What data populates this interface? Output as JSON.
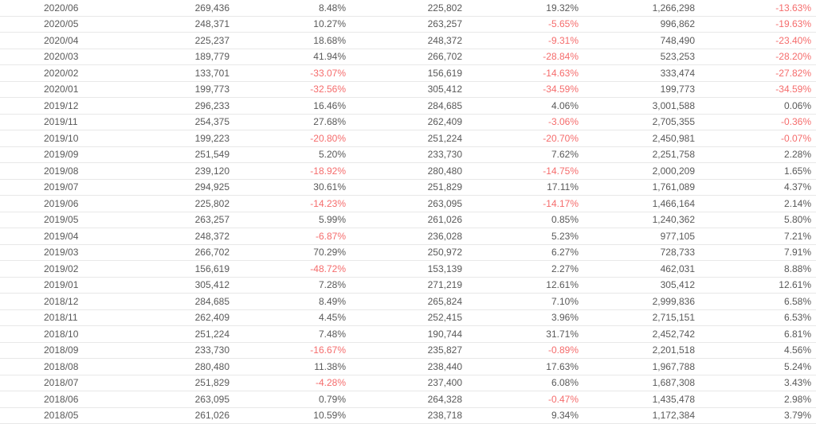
{
  "table": {
    "rows": [
      [
        "2020/06",
        "269,436",
        "8.48%",
        "225,802",
        "19.32%",
        "1,266,298",
        "-13.63%"
      ],
      [
        "2020/05",
        "248,371",
        "10.27%",
        "263,257",
        "-5.65%",
        "996,862",
        "-19.63%"
      ],
      [
        "2020/04",
        "225,237",
        "18.68%",
        "248,372",
        "-9.31%",
        "748,490",
        "-23.40%"
      ],
      [
        "2020/03",
        "189,779",
        "41.94%",
        "266,702",
        "-28.84%",
        "523,253",
        "-28.20%"
      ],
      [
        "2020/02",
        "133,701",
        "-33.07%",
        "156,619",
        "-14.63%",
        "333,474",
        "-27.82%"
      ],
      [
        "2020/01",
        "199,773",
        "-32.56%",
        "305,412",
        "-34.59%",
        "199,773",
        "-34.59%"
      ],
      [
        "2019/12",
        "296,233",
        "16.46%",
        "284,685",
        "4.06%",
        "3,001,588",
        "0.06%"
      ],
      [
        "2019/11",
        "254,375",
        "27.68%",
        "262,409",
        "-3.06%",
        "2,705,355",
        "-0.36%"
      ],
      [
        "2019/10",
        "199,223",
        "-20.80%",
        "251,224",
        "-20.70%",
        "2,450,981",
        "-0.07%"
      ],
      [
        "2019/09",
        "251,549",
        "5.20%",
        "233,730",
        "7.62%",
        "2,251,758",
        "2.28%"
      ],
      [
        "2019/08",
        "239,120",
        "-18.92%",
        "280,480",
        "-14.75%",
        "2,000,209",
        "1.65%"
      ],
      [
        "2019/07",
        "294,925",
        "30.61%",
        "251,829",
        "17.11%",
        "1,761,089",
        "4.37%"
      ],
      [
        "2019/06",
        "225,802",
        "-14.23%",
        "263,095",
        "-14.17%",
        "1,466,164",
        "2.14%"
      ],
      [
        "2019/05",
        "263,257",
        "5.99%",
        "261,026",
        "0.85%",
        "1,240,362",
        "5.80%"
      ],
      [
        "2019/04",
        "248,372",
        "-6.87%",
        "236,028",
        "5.23%",
        "977,105",
        "7.21%"
      ],
      [
        "2019/03",
        "266,702",
        "70.29%",
        "250,972",
        "6.27%",
        "728,733",
        "7.91%"
      ],
      [
        "2019/02",
        "156,619",
        "-48.72%",
        "153,139",
        "2.27%",
        "462,031",
        "8.88%"
      ],
      [
        "2019/01",
        "305,412",
        "7.28%",
        "271,219",
        "12.61%",
        "305,412",
        "12.61%"
      ],
      [
        "2018/12",
        "284,685",
        "8.49%",
        "265,824",
        "7.10%",
        "2,999,836",
        "6.58%"
      ],
      [
        "2018/11",
        "262,409",
        "4.45%",
        "252,415",
        "3.96%",
        "2,715,151",
        "6.53%"
      ],
      [
        "2018/10",
        "251,224",
        "7.48%",
        "190,744",
        "31.71%",
        "2,452,742",
        "6.81%"
      ],
      [
        "2018/09",
        "233,730",
        "-16.67%",
        "235,827",
        "-0.89%",
        "2,201,518",
        "4.56%"
      ],
      [
        "2018/08",
        "280,480",
        "11.38%",
        "238,440",
        "17.63%",
        "1,967,788",
        "5.24%"
      ],
      [
        "2018/07",
        "251,829",
        "-4.28%",
        "237,400",
        "6.08%",
        "1,687,308",
        "3.43%"
      ],
      [
        "2018/06",
        "263,095",
        "0.79%",
        "264,328",
        "-0.47%",
        "1,435,478",
        "2.98%"
      ],
      [
        "2018/05",
        "261,026",
        "10.59%",
        "238,718",
        "9.34%",
        "1,172,384",
        "3.79%"
      ]
    ]
  },
  "colors": {
    "text": "#595959",
    "negative_text": "#f56c6c",
    "row_border": "#e8e8e8",
    "background": "#ffffff"
  }
}
